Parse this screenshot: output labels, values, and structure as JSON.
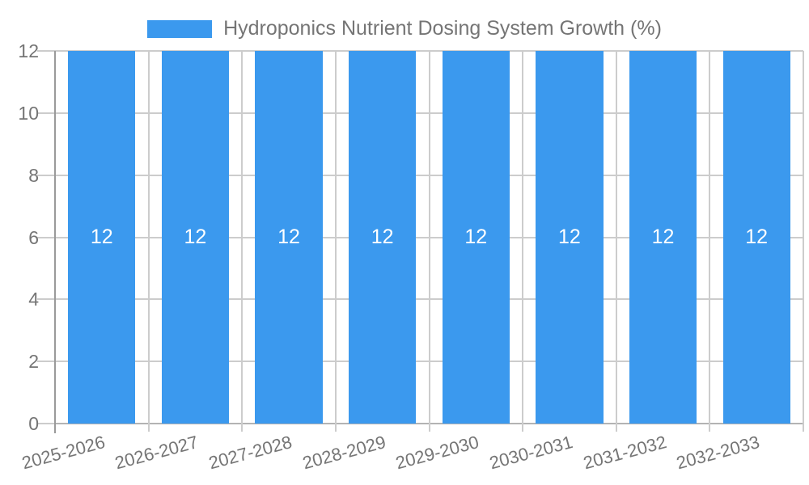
{
  "chart_data": {
    "type": "bar",
    "title": "Hydroponics Nutrient Dosing System Growth (%)",
    "categories": [
      "2025-2026",
      "2026-2027",
      "2027-2028",
      "2028-2029",
      "2029-2030",
      "2030-2031",
      "2031-2032",
      "2032-2033"
    ],
    "series": [
      {
        "name": "Hydroponics Nutrient Dosing System Growth (%)",
        "values": [
          12,
          12,
          12,
          12,
          12,
          12,
          12,
          12
        ]
      }
    ],
    "bar_data_labels": [
      "12",
      "12",
      "12",
      "12",
      "12",
      "12",
      "12",
      "12"
    ],
    "xlabel": "",
    "ylabel": "",
    "ylim": [
      0,
      12
    ],
    "yticks": [
      0,
      2,
      4,
      6,
      8,
      10,
      12
    ],
    "grid": true,
    "legend_position": "top",
    "bar_color": "#3b99ee",
    "bar_label_color": "#ffffff"
  },
  "colors": {
    "background": "#ffffff",
    "axis_text": "#757575",
    "gridline": "#cccccc",
    "axis_line": "#9a9a9a",
    "baseline": "#b3b3b3"
  }
}
